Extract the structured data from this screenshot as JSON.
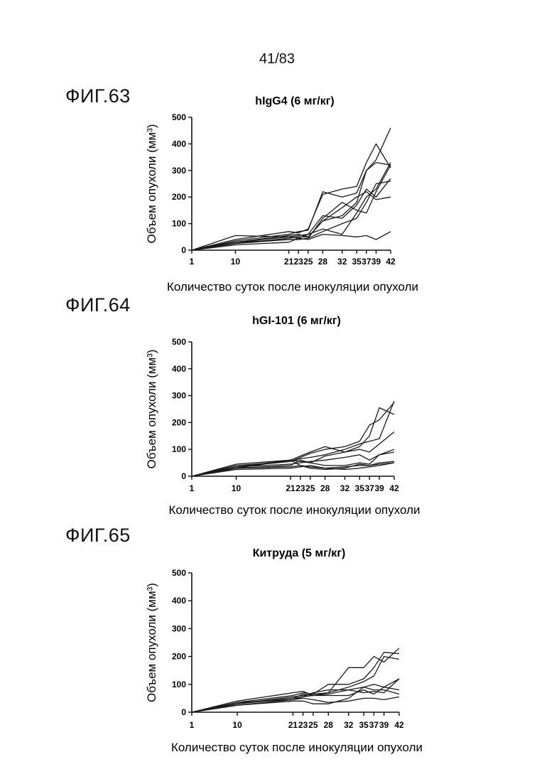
{
  "page_number": "41/83",
  "figures": [
    {
      "label": "ФИГ.63"
    },
    {
      "label": "ФИГ.64"
    },
    {
      "label": "ФИГ.65"
    }
  ],
  "chart_data": [
    {
      "type": "line",
      "title": "hIgG4 (6 мг/кг)",
      "xlabel": "Количество суток после инокуляции опухоли",
      "ylabel": "Объем опухоли (мм³)",
      "x": [
        1,
        10,
        21,
        23,
        25,
        28,
        32,
        35,
        37,
        39,
        42
      ],
      "x_tick_labels": [
        "1",
        "10",
        "21",
        "23",
        "25",
        "28",
        "32",
        "35",
        "37",
        "39",
        "42"
      ],
      "ylim": [
        0,
        500
      ],
      "y_ticks": [
        0,
        100,
        200,
        300,
        400,
        500
      ],
      "series": [
        {
          "values": [
            0,
            40,
            70,
            65,
            80,
            210,
            230,
            240,
            330,
            400,
            310
          ]
        },
        {
          "values": [
            0,
            35,
            60,
            70,
            75,
            220,
            200,
            215,
            300,
            340,
            460
          ]
        },
        {
          "values": [
            0,
            30,
            55,
            60,
            50,
            110,
            130,
            180,
            300,
            330,
            320
          ]
        },
        {
          "values": [
            0,
            30,
            50,
            55,
            60,
            130,
            120,
            170,
            230,
            200,
            270
          ]
        },
        {
          "values": [
            0,
            25,
            45,
            50,
            50,
            110,
            160,
            200,
            220,
            190,
            200
          ]
        },
        {
          "values": [
            0,
            25,
            40,
            40,
            45,
            120,
            180,
            150,
            140,
            220,
            320
          ]
        },
        {
          "values": [
            0,
            20,
            30,
            45,
            60,
            80,
            60,
            140,
            200,
            230,
            330
          ]
        },
        {
          "values": [
            0,
            55,
            50,
            45,
            40,
            60,
            55,
            50,
            55,
            40,
            70
          ]
        },
        {
          "values": [
            0,
            30,
            40,
            40,
            45,
            70,
            100,
            120,
            180,
            250,
            260
          ]
        }
      ]
    },
    {
      "type": "line",
      "title": "hGI-101 (6 мг/кг)",
      "xlabel": "Количество суток после инокуляции опухоли",
      "ylabel": "Объем опухоли (мм³)",
      "x": [
        1,
        10,
        21,
        23,
        25,
        28,
        32,
        35,
        37,
        39,
        42
      ],
      "x_tick_labels": [
        "1",
        "10",
        "21",
        "23",
        "25",
        "28",
        "32",
        "35",
        "37",
        "39",
        "42"
      ],
      "ylim": [
        0,
        500
      ],
      "y_ticks": [
        0,
        100,
        200,
        300,
        400,
        500
      ],
      "series": [
        {
          "values": [
            0,
            45,
            60,
            75,
            90,
            110,
            90,
            110,
            150,
            255,
            230
          ]
        },
        {
          "values": [
            0,
            40,
            55,
            70,
            85,
            100,
            110,
            130,
            190,
            210,
            275
          ]
        },
        {
          "values": [
            0,
            35,
            55,
            65,
            70,
            80,
            100,
            120,
            130,
            140,
            280
          ]
        },
        {
          "values": [
            0,
            30,
            60,
            55,
            50,
            75,
            90,
            100,
            90,
            120,
            165
          ]
        },
        {
          "values": [
            0,
            35,
            45,
            50,
            55,
            60,
            70,
            80,
            60,
            80,
            100
          ]
        },
        {
          "values": [
            0,
            30,
            40,
            60,
            50,
            40,
            40,
            50,
            45,
            80,
            90
          ]
        },
        {
          "values": [
            0,
            30,
            35,
            40,
            30,
            25,
            30,
            45,
            40,
            50,
            55
          ]
        },
        {
          "values": [
            0,
            25,
            30,
            35,
            40,
            30,
            25,
            30,
            35,
            40,
            50
          ]
        },
        {
          "values": [
            0,
            35,
            60,
            40,
            35,
            30,
            35,
            40,
            40,
            45,
            50
          ]
        }
      ]
    },
    {
      "type": "line",
      "title": "Китруда (5 мг/кг)",
      "xlabel": "Количество суток после инокуляции опухоли",
      "ylabel": "Объем опухоли (мм³)",
      "x": [
        1,
        10,
        21,
        23,
        25,
        28,
        32,
        35,
        37,
        39,
        42
      ],
      "x_tick_labels": [
        "1",
        "10",
        "21",
        "23",
        "25",
        "28",
        "32",
        "35",
        "37",
        "39",
        "42"
      ],
      "ylim": [
        0,
        500
      ],
      "y_ticks": [
        0,
        100,
        200,
        300,
        400,
        500
      ],
      "series": [
        {
          "values": [
            0,
            40,
            70,
            75,
            60,
            70,
            160,
            160,
            200,
            180,
            230
          ]
        },
        {
          "values": [
            0,
            35,
            60,
            70,
            65,
            100,
            100,
            120,
            160,
            215,
            210
          ]
        },
        {
          "values": [
            0,
            30,
            55,
            60,
            65,
            70,
            90,
            110,
            130,
            200,
            190
          ]
        },
        {
          "values": [
            0,
            30,
            50,
            65,
            60,
            65,
            80,
            90,
            100,
            90,
            120
          ]
        },
        {
          "values": [
            0,
            25,
            45,
            55,
            70,
            80,
            80,
            70,
            75,
            70,
            120
          ]
        },
        {
          "values": [
            0,
            30,
            50,
            55,
            60,
            60,
            60,
            80,
            65,
            90,
            80
          ]
        },
        {
          "values": [
            0,
            25,
            40,
            40,
            30,
            30,
            50,
            90,
            80,
            80,
            65
          ]
        },
        {
          "values": [
            0,
            35,
            45,
            50,
            45,
            35,
            40,
            50,
            50,
            45,
            55
          ]
        }
      ]
    }
  ]
}
